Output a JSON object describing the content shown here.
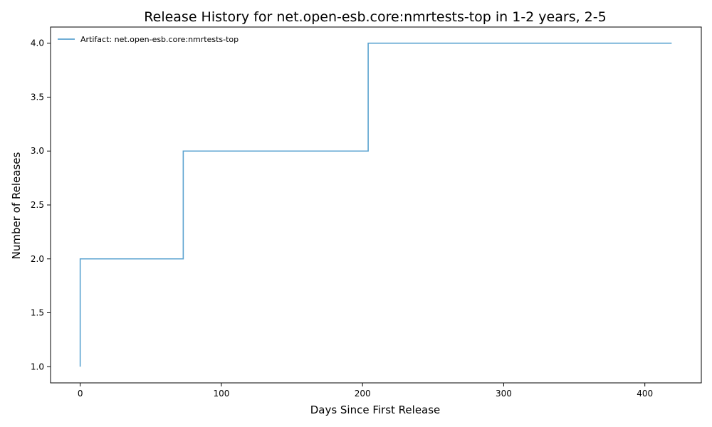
{
  "chart_data": {
    "type": "line",
    "step": "post",
    "title": "Release History for net.open-esb.core:nmrtests-top in 1-2 years, 2-5",
    "xlabel": "Days Since First Release",
    "ylabel": "Number of Releases",
    "xlim": [
      -21,
      440
    ],
    "ylim": [
      0.85,
      4.15
    ],
    "xticks": [
      0,
      100,
      200,
      300,
      400
    ],
    "yticks": [
      1.0,
      1.5,
      2.0,
      2.5,
      3.0,
      3.5,
      4.0
    ],
    "xtick_labels": [
      "0",
      "100",
      "200",
      "300",
      "400"
    ],
    "ytick_labels": [
      "1.0",
      "1.5",
      "2.0",
      "2.5",
      "3.0",
      "3.5",
      "4.0"
    ],
    "grid": false,
    "legend_position": "top-left",
    "series": [
      {
        "name": "Artifact: net.open-esb.core:nmrtests-top",
        "color": "#5ba3d0",
        "x": [
          0,
          0,
          73,
          204,
          419
        ],
        "y": [
          1,
          2,
          3,
          4,
          4
        ]
      }
    ]
  }
}
